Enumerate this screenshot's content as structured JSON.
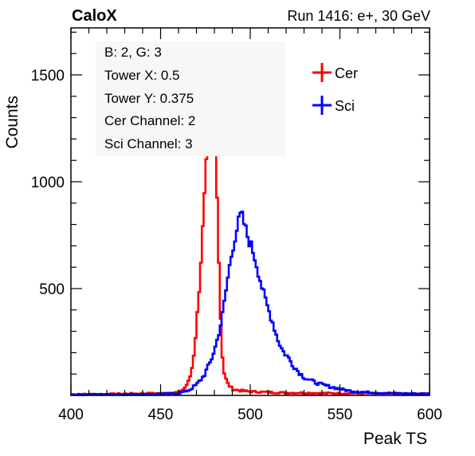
{
  "header": {
    "left_label": "CaloX",
    "right_label": "Run 1416: e+, 30 GeV"
  },
  "info_box": {
    "lines": [
      "B: 2, G: 3",
      "Tower X: 0.5",
      "Tower Y: 0.375",
      "Cer Channel: 2",
      "Sci Channel: 3"
    ]
  },
  "colors": {
    "cer": "#ff0000",
    "sci": "#0000ff",
    "frame": "#000000",
    "info_box_bg": "#f7f7f7"
  },
  "chart_data": {
    "type": "line",
    "histogram": true,
    "xlabel": "Peak TS",
    "ylabel": "Counts",
    "xlim": [
      400,
      600
    ],
    "ylim": [
      0,
      1720
    ],
    "x_ticks": [
      400,
      450,
      500,
      550,
      600
    ],
    "y_ticks": [
      500,
      1000,
      1500
    ],
    "grid": false,
    "legend_position": "top-right",
    "series": [
      {
        "name": "Cer",
        "points": [
          [
            400,
            5
          ],
          [
            420,
            6
          ],
          [
            440,
            9
          ],
          [
            455,
            10
          ],
          [
            460,
            15
          ],
          [
            463,
            30
          ],
          [
            466,
            70
          ],
          [
            468,
            150
          ],
          [
            470,
            320
          ],
          [
            472,
            560
          ],
          [
            474,
            850
          ],
          [
            476,
            1150
          ],
          [
            478,
            1360
          ],
          [
            479,
            1420
          ],
          [
            480,
            1300
          ],
          [
            481,
            1130
          ],
          [
            482,
            780
          ],
          [
            483,
            480
          ],
          [
            484,
            250
          ],
          [
            485,
            120
          ],
          [
            487,
            60
          ],
          [
            490,
            30
          ],
          [
            495,
            22
          ],
          [
            500,
            18
          ],
          [
            510,
            15
          ],
          [
            520,
            12
          ],
          [
            530,
            12
          ],
          [
            540,
            10
          ],
          [
            560,
            10
          ],
          [
            580,
            8
          ],
          [
            600,
            7
          ]
        ]
      },
      {
        "name": "Sci",
        "points": [
          [
            400,
            4
          ],
          [
            430,
            5
          ],
          [
            445,
            6
          ],
          [
            460,
            10
          ],
          [
            466,
            25
          ],
          [
            470,
            50
          ],
          [
            474,
            90
          ],
          [
            478,
            160
          ],
          [
            481,
            240
          ],
          [
            484,
            350
          ],
          [
            486,
            460
          ],
          [
            488,
            580
          ],
          [
            490,
            680
          ],
          [
            492,
            760
          ],
          [
            494,
            830
          ],
          [
            495,
            850
          ],
          [
            497,
            790
          ],
          [
            499,
            730
          ],
          [
            501,
            690
          ],
          [
            503,
            630
          ],
          [
            505,
            560
          ],
          [
            507,
            490
          ],
          [
            509,
            430
          ],
          [
            511,
            380
          ],
          [
            513,
            330
          ],
          [
            515,
            270
          ],
          [
            518,
            210
          ],
          [
            521,
            180
          ],
          [
            524,
            140
          ],
          [
            527,
            110
          ],
          [
            530,
            85
          ],
          [
            535,
            65
          ],
          [
            540,
            50
          ],
          [
            545,
            40
          ],
          [
            550,
            30
          ],
          [
            555,
            22
          ],
          [
            560,
            18
          ],
          [
            570,
            12
          ],
          [
            580,
            10
          ],
          [
            590,
            8
          ],
          [
            600,
            8
          ]
        ]
      }
    ]
  }
}
